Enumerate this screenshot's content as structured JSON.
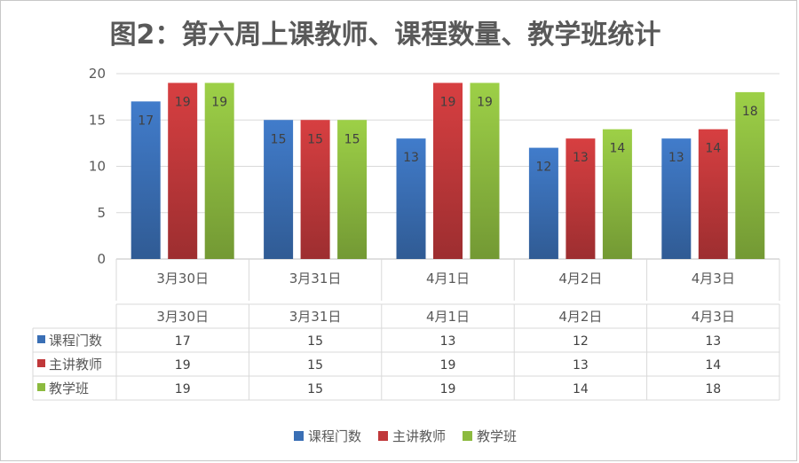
{
  "chart_data": {
    "type": "bar",
    "title": "图2：第六周上课教师、课程数量、教学班统计",
    "categories": [
      "3月30日",
      "3月31日",
      "4月1日",
      "4月2日",
      "4月3日"
    ],
    "series": [
      {
        "name": "课程门数",
        "values": [
          17,
          15,
          13,
          12,
          13
        ],
        "color": "#3a6fb5"
      },
      {
        "name": "主讲教师",
        "values": [
          19,
          15,
          19,
          13,
          14
        ],
        "color": "#c0383a"
      },
      {
        "name": "教学班",
        "values": [
          19,
          15,
          19,
          14,
          18
        ],
        "color": "#8cba3f"
      }
    ],
    "ylim": [
      0,
      20
    ],
    "yticks": [
      0,
      5,
      10,
      15,
      20
    ],
    "grid": true,
    "legend": "bottom",
    "data_table": true
  }
}
